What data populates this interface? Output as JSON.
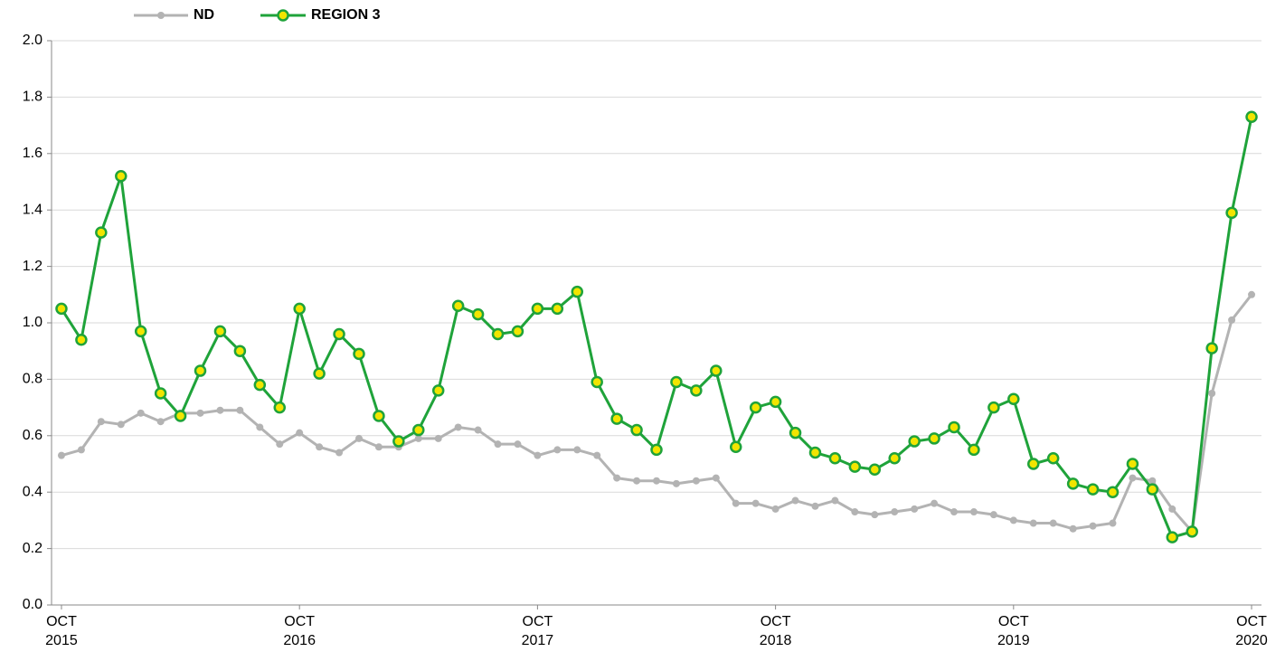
{
  "chart_data": {
    "type": "line",
    "categories": [
      "OCT 2015",
      null,
      null,
      null,
      null,
      null,
      null,
      null,
      null,
      null,
      null,
      null,
      "OCT 2016",
      null,
      null,
      null,
      null,
      null,
      null,
      null,
      null,
      null,
      null,
      null,
      "OCT 2017",
      null,
      null,
      null,
      null,
      null,
      null,
      null,
      null,
      null,
      null,
      null,
      "OCT 2018",
      null,
      null,
      null,
      null,
      null,
      null,
      null,
      null,
      null,
      null,
      null,
      "OCT 2019",
      null,
      null,
      null,
      null,
      null,
      null,
      null,
      null,
      null,
      null,
      null,
      "OCT 2020"
    ],
    "series": [
      {
        "name": "ND",
        "color": "#b3b3b3",
        "marker_fill": "#b3b3b3",
        "values": [
          0.53,
          0.55,
          0.65,
          0.64,
          0.68,
          0.65,
          0.68,
          0.68,
          0.69,
          0.69,
          0.63,
          0.57,
          0.61,
          0.56,
          0.54,
          0.59,
          0.56,
          0.56,
          0.59,
          0.59,
          0.63,
          0.62,
          0.57,
          0.57,
          0.53,
          0.55,
          0.55,
          0.53,
          0.45,
          0.44,
          0.44,
          0.43,
          0.44,
          0.45,
          0.36,
          0.36,
          0.34,
          0.37,
          0.35,
          0.37,
          0.33,
          0.32,
          0.33,
          0.34,
          0.36,
          0.33,
          0.33,
          0.32,
          0.3,
          0.29,
          0.29,
          0.27,
          0.28,
          0.29,
          0.45,
          0.44,
          0.34,
          0.26,
          0.75,
          1.01,
          1.1
        ]
      },
      {
        "name": "REGION 3",
        "color": "#1fa33a",
        "marker_fill": "#f2e500",
        "values": [
          1.05,
          0.94,
          1.32,
          1.52,
          0.97,
          0.75,
          0.67,
          0.83,
          0.97,
          0.9,
          0.78,
          0.7,
          1.05,
          0.82,
          0.96,
          0.89,
          0.67,
          0.58,
          0.62,
          0.76,
          1.06,
          1.03,
          0.96,
          0.97,
          1.05,
          1.05,
          1.11,
          0.79,
          0.66,
          0.62,
          0.55,
          0.79,
          0.76,
          0.83,
          0.56,
          0.7,
          0.72,
          0.61,
          0.54,
          0.52,
          0.49,
          0.48,
          0.52,
          0.58,
          0.59,
          0.63,
          0.55,
          0.7,
          0.73,
          0.5,
          0.52,
          0.43,
          0.41,
          0.4,
          0.5,
          0.41,
          0.24,
          0.26,
          0.91,
          1.39,
          1.73
        ]
      }
    ],
    "ylim": [
      0,
      2
    ],
    "yticks": [
      {
        "value": 0,
        "label": "0.0"
      },
      0.2,
      0.4,
      0.6,
      0.8,
      {
        "value": 1,
        "label": "1.0"
      },
      1.2,
      1.4,
      1.6,
      1.8,
      {
        "value": 2,
        "label": "2.0"
      }
    ],
    "grid": true,
    "legend": "top-left"
  }
}
